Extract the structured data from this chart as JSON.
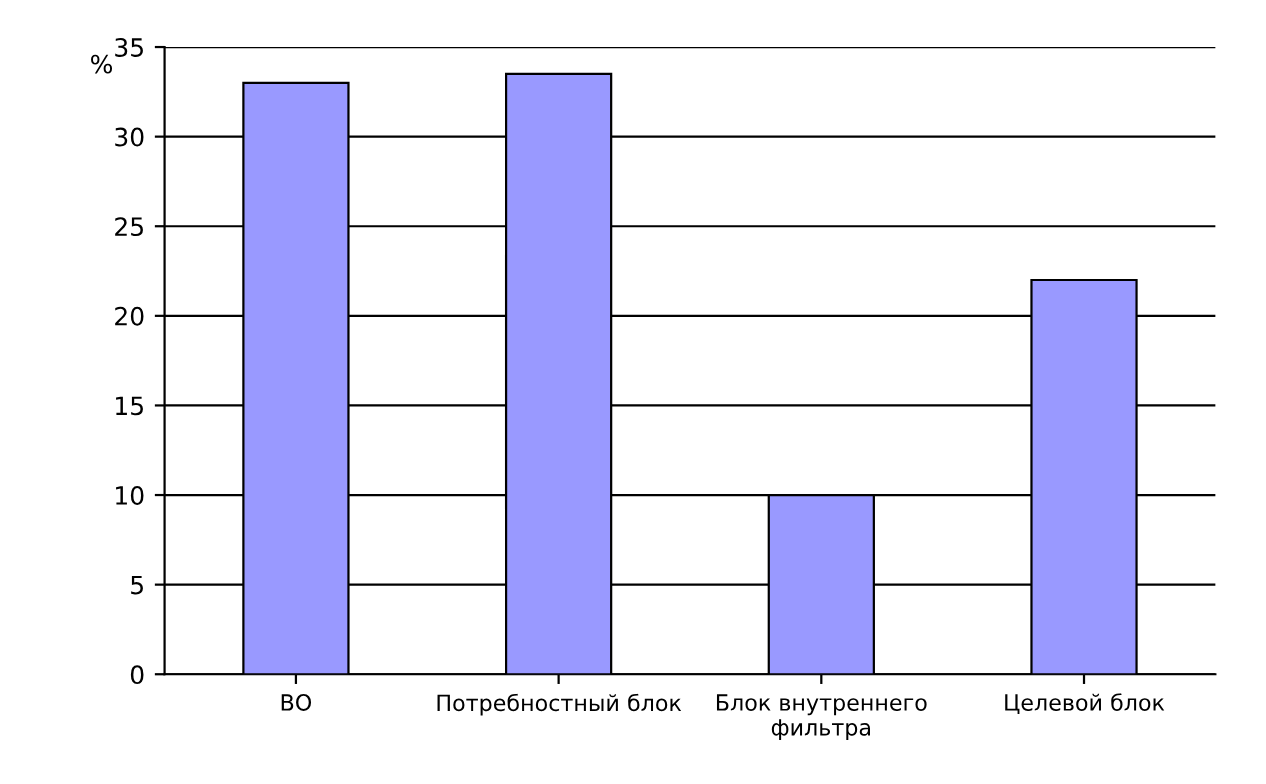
{
  "chart_data": {
    "type": "bar",
    "ylabel": "%",
    "categories": [
      "ВО",
      "Потребностный блок",
      "Блок внутреннего\nфильтра",
      "Целевой блок"
    ],
    "values": [
      33,
      33.5,
      10,
      22
    ],
    "color": "#9999ff",
    "ylim": [
      0,
      35
    ],
    "yticks": [
      0,
      5,
      10,
      15,
      20,
      25,
      30,
      35
    ],
    "grid": "y"
  }
}
